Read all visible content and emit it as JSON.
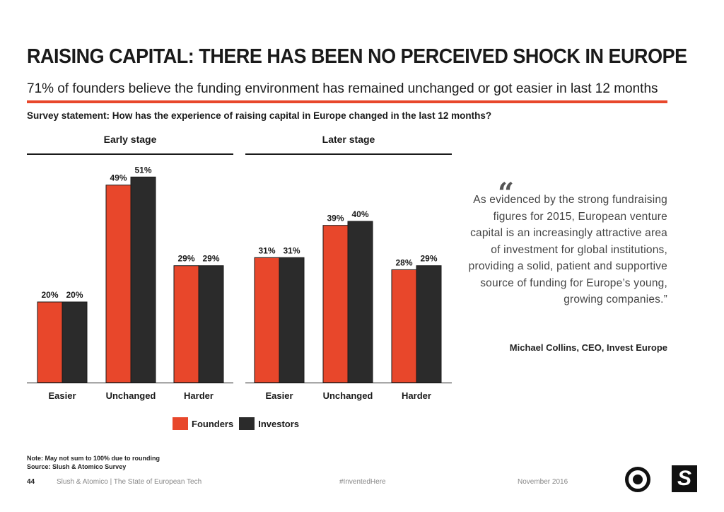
{
  "header": {
    "title": "RAISING CAPITAL: THERE HAS BEEN NO PERCEIVED SHOCK IN EUROPE",
    "subtitle": "71% of founders believe the funding environment has remained unchanged or got easier in last 12 months",
    "survey": "Survey statement: How has the experience of raising capital in Europe changed in the last 12 months?"
  },
  "colors": {
    "accent": "#e8472b",
    "founders": "#e8472b",
    "investors": "#2b2b2b"
  },
  "chart_data": [
    {
      "type": "bar",
      "title": "Early stage",
      "categories": [
        "Easier",
        "Unchanged",
        "Harder"
      ],
      "series": [
        {
          "name": "Founders",
          "values": [
            20,
            49,
            29
          ]
        },
        {
          "name": "Investors",
          "values": [
            20,
            51,
            29
          ]
        }
      ],
      "value_labels": [
        [
          "20%",
          "49%",
          "29%"
        ],
        [
          "20%",
          "51%",
          "29%"
        ]
      ],
      "ylim": [
        0,
        60
      ],
      "grid": false
    },
    {
      "type": "bar",
      "title": "Later stage",
      "categories": [
        "Easier",
        "Unchanged",
        "Harder"
      ],
      "series": [
        {
          "name": "Founders",
          "values": [
            31,
            39,
            28
          ]
        },
        {
          "name": "Investors",
          "values": [
            31,
            40,
            29
          ]
        }
      ],
      "value_labels": [
        [
          "31%",
          "39%",
          "28%"
        ],
        [
          "31%",
          "40%",
          "29%"
        ]
      ],
      "ylim": [
        0,
        60
      ],
      "grid": false
    }
  ],
  "legend": {
    "placement": "bottom-center",
    "founders": "Founders",
    "investors": "Investors"
  },
  "quote": {
    "mark": "“",
    "text": "As evidenced by the strong fundraising figures for 2015, European venture capital is an increasingly attractive area of investment for global institutions, providing a solid, patient and supportive source of funding for Europe’s young, growing companies.”",
    "author": "Michael Collins, CEO, Invest Europe"
  },
  "notes": {
    "note": "Note: May not sum to 100% due to rounding",
    "source": "Source: Slush & Atomico Survey"
  },
  "footer": {
    "page": "44",
    "publication": "Slush & Atomico  |  The State of European Tech",
    "hashtag": "#InventedHere",
    "date": "November 2016",
    "logo_right_glyph": "S"
  }
}
